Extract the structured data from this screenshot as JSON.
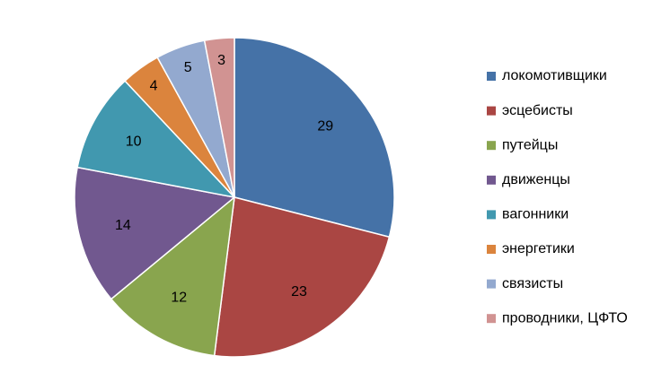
{
  "chart_data": {
    "type": "pie",
    "categories": [
      "локомотивщики",
      "эсцебисты",
      "путейцы",
      "движенцы",
      "вагонники",
      "энергетики",
      "связисты",
      "проводники, ЦФТО"
    ],
    "values": [
      29,
      23,
      12,
      14,
      10,
      4,
      5,
      3
    ],
    "colors": [
      "#4572A7",
      "#AA4643",
      "#89A54E",
      "#71588F",
      "#4198AF",
      "#DB843D",
      "#93A9CF",
      "#D19392"
    ],
    "legend": "right"
  }
}
